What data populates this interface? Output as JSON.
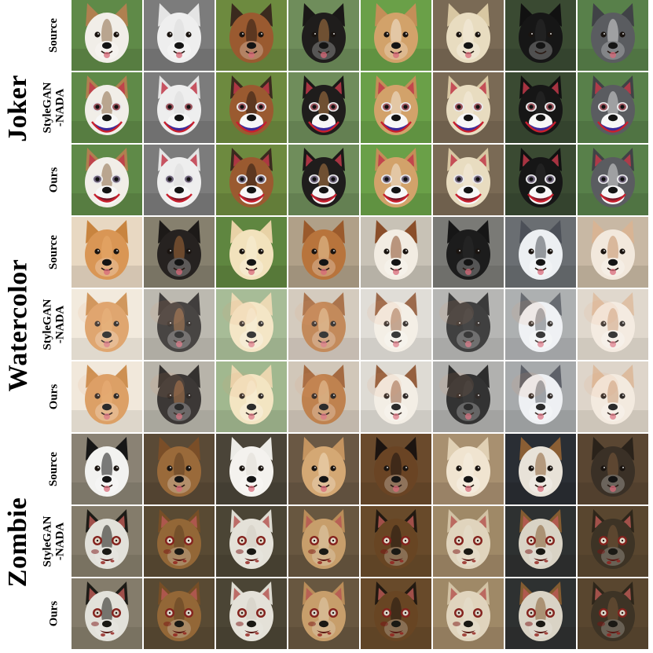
{
  "groups": [
    {
      "title": "Joker",
      "effect": "joker",
      "rows": [
        "Source",
        "StyleGAN\n-NADA",
        "Ours"
      ],
      "dogs": [
        {
          "fur": "#f1eee8",
          "ear": "#b08050",
          "bg": "#5f8a48",
          "patch": "#8a6a45"
        },
        {
          "fur": "#eeeeee",
          "ear": "#e4e4e4",
          "bg": "#7c7c7c",
          "patch": "#dcdcdc"
        },
        {
          "fur": "#9a5a30",
          "ear": "#3a2a1e",
          "bg": "#6d8a3f",
          "patch": "#2a1c14"
        },
        {
          "fur": "#1f1d1c",
          "ear": "#1a1817",
          "bg": "#6f8d5b",
          "patch": "#b07a45"
        },
        {
          "fur": "#d2a26a",
          "ear": "#c48e58",
          "bg": "#6aa048",
          "patch": "#f0e6d6"
        },
        {
          "fur": "#e8dcc0",
          "ear": "#d8c7a2",
          "bg": "#7a6a55",
          "patch": "#f4ecdc"
        },
        {
          "fur": "#161616",
          "ear": "#111111",
          "bg": "#3a4a32",
          "patch": "#2c2c2c"
        },
        {
          "fur": "#5a5c60",
          "ear": "#404246",
          "bg": "#58804a",
          "patch": "#d8d8d8"
        }
      ]
    },
    {
      "title": "Watercolor",
      "effect": "watercolor",
      "rows": [
        "Source",
        "StyleGAN\n-NADA",
        "Ours"
      ],
      "dogs": [
        {
          "fur": "#d99655",
          "ear": "#c8843f",
          "bg": "#e8d8c2",
          "patch": "#e7ac6c"
        },
        {
          "fur": "#262220",
          "ear": "#1d1a18",
          "bg": "#86806e",
          "patch": "#a56a38"
        },
        {
          "fur": "#f2e2bc",
          "ear": "#e8d2a6",
          "bg": "#5f8640",
          "patch": "#f8eed6"
        },
        {
          "fur": "#b8743c",
          "ear": "#9a5a2c",
          "bg": "#b0a088",
          "patch": "#e8c89a"
        },
        {
          "fur": "#f2ece2",
          "ear": "#8a4e2a",
          "bg": "#c8c2b6",
          "patch": "#8a4e2a"
        },
        {
          "fur": "#1c1c1c",
          "ear": "#161616",
          "bg": "#7a7a76",
          "patch": "#2a2a2a"
        },
        {
          "fur": "#eceff2",
          "ear": "#4c5058",
          "bg": "#6a6e72",
          "patch": "#4c5058"
        },
        {
          "fur": "#f2e8dc",
          "ear": "#d8b494",
          "bg": "#c8b8a4",
          "patch": "#c49068"
        }
      ]
    },
    {
      "title": "Zombie",
      "effect": "zombie",
      "rows": [
        "Source",
        "StyleGAN\n-NADA",
        "Ours"
      ],
      "dogs": [
        {
          "fur": "#f2f2f0",
          "ear": "#161616",
          "bg": "#8a8274",
          "patch": "#161616"
        },
        {
          "fur": "#9a6a3a",
          "ear": "#7a4e28",
          "bg": "#5a4a36",
          "patch": "#5e3e22"
        },
        {
          "fur": "#f4f2ee",
          "ear": "#ecebe6",
          "bg": "#4a4438",
          "patch": "#e0ddd6"
        },
        {
          "fur": "#d4a874",
          "ear": "#c49460",
          "bg": "#6a5844",
          "patch": "#f0dcc0"
        },
        {
          "fur": "#6a4424",
          "ear": "#1c1410",
          "bg": "#6a4a2c",
          "patch": "#1c1410"
        },
        {
          "fur": "#f0e4d0",
          "ear": "#e0d0b4",
          "bg": "#a89070",
          "patch": "#f6eee2"
        },
        {
          "fur": "#e8e2d8",
          "ear": "#8a5e34",
          "bg": "#2a2e34",
          "patch": "#8a5e34"
        },
        {
          "fur": "#3a3026",
          "ear": "#2a221a",
          "bg": "#5a4632",
          "patch": "#7a5a3a"
        }
      ]
    }
  ]
}
